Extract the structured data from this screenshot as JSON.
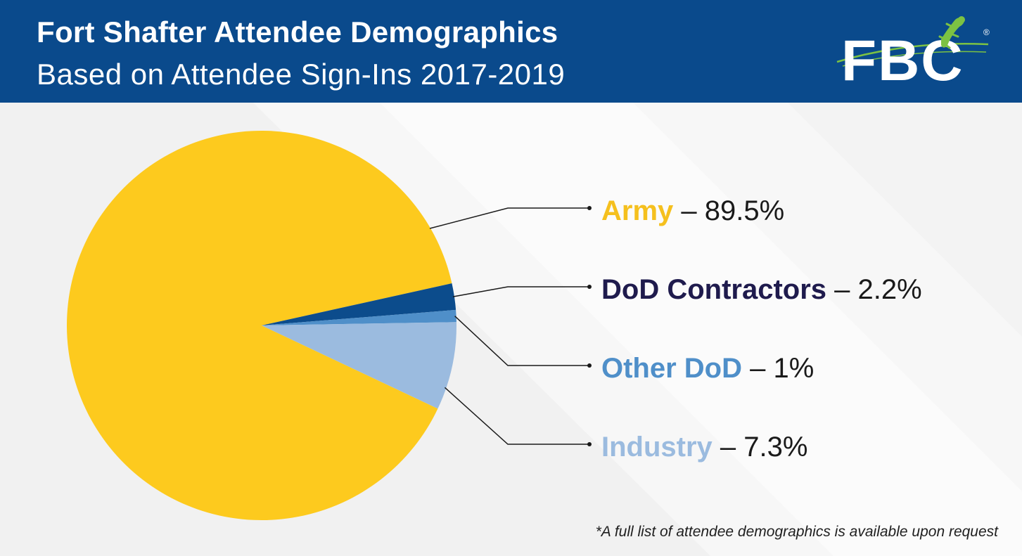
{
  "header": {
    "title": "Fort Shafter Attendee Demographics",
    "subtitle": "Based on Attendee Sign-Ins 2017-2019"
  },
  "logo": {
    "text": "FBC",
    "registered_mark": "®"
  },
  "chart_data": {
    "type": "pie",
    "title": "",
    "slices": [
      {
        "name": "Army",
        "value": 89.5,
        "value_label": "89.5%",
        "color": "#fdca1e",
        "label_color": "#f5c01e"
      },
      {
        "name": "DoD Contractors",
        "value": 2.2,
        "value_label": "2.2%",
        "color": "#0c4c8c",
        "label_color": "#1f1b4d"
      },
      {
        "name": "Other DoD",
        "value": 1,
        "value_label": "1%",
        "color": "#4f8fc9",
        "label_color": "#4f8fc9"
      },
      {
        "name": "Industry",
        "value": 7.3,
        "value_label": "7.3%",
        "color": "#9bbbdf",
        "label_color": "#9bbbdf"
      }
    ],
    "separator": " – ",
    "legend_placement": "right"
  },
  "footnote": "*A full list of attendee demographics is available upon request",
  "colors": {
    "header_bg": "#0a4a8c",
    "logo_green": "#7cc243"
  }
}
